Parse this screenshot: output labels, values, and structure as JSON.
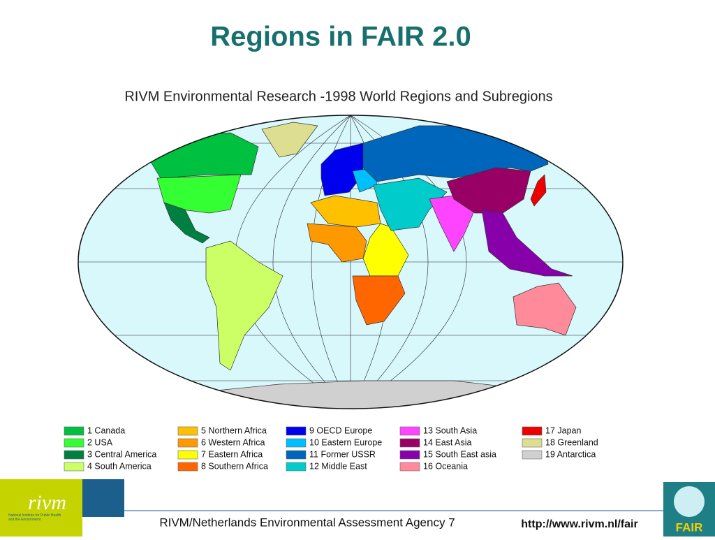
{
  "title": "Regions in FAIR 2.0",
  "map": {
    "title": "RIVM Environmental Research -1998 World Regions and Subregions",
    "legend": [
      {
        "label": "1 Canada",
        "color": "#00c040"
      },
      {
        "label": "2 USA",
        "color": "#33ff33"
      },
      {
        "label": "3 Central America",
        "color": "#008040"
      },
      {
        "label": "4 South America",
        "color": "#ccff66"
      },
      {
        "label": "5 Northern Africa",
        "color": "#ffc000"
      },
      {
        "label": "6 Western Africa",
        "color": "#ff9900"
      },
      {
        "label": "7 Eastern Africa",
        "color": "#ffff00"
      },
      {
        "label": "8 Southern Africa",
        "color": "#ff6600"
      },
      {
        "label": "9 OECD Europe",
        "color": "#0000ee"
      },
      {
        "label": "10 Eastern Europe",
        "color": "#00bfff"
      },
      {
        "label": "11 Former USSR",
        "color": "#0066bb"
      },
      {
        "label": "12 Middle East",
        "color": "#00cccc"
      },
      {
        "label": "13 South Asia",
        "color": "#ff44ff"
      },
      {
        "label": "14 East Asia",
        "color": "#990066"
      },
      {
        "label": "15 South East asia",
        "color": "#8800aa"
      },
      {
        "label": "16 Oceania",
        "color": "#ff8a9a"
      },
      {
        "label": "17 Japan",
        "color": "#ee0000"
      },
      {
        "label": "18 Greenland",
        "color": "#dede90"
      },
      {
        "label": "19 Antarctica",
        "color": "#d0d0d0"
      }
    ]
  },
  "footer": {
    "logo": "rivm",
    "institute": "National Institute for Public Health and the Environment",
    "text": "RIVM/Netherlands Environmental Assessment Agency 7",
    "url": "http://www.rivm.nl/fair",
    "badge": "FAIR"
  }
}
